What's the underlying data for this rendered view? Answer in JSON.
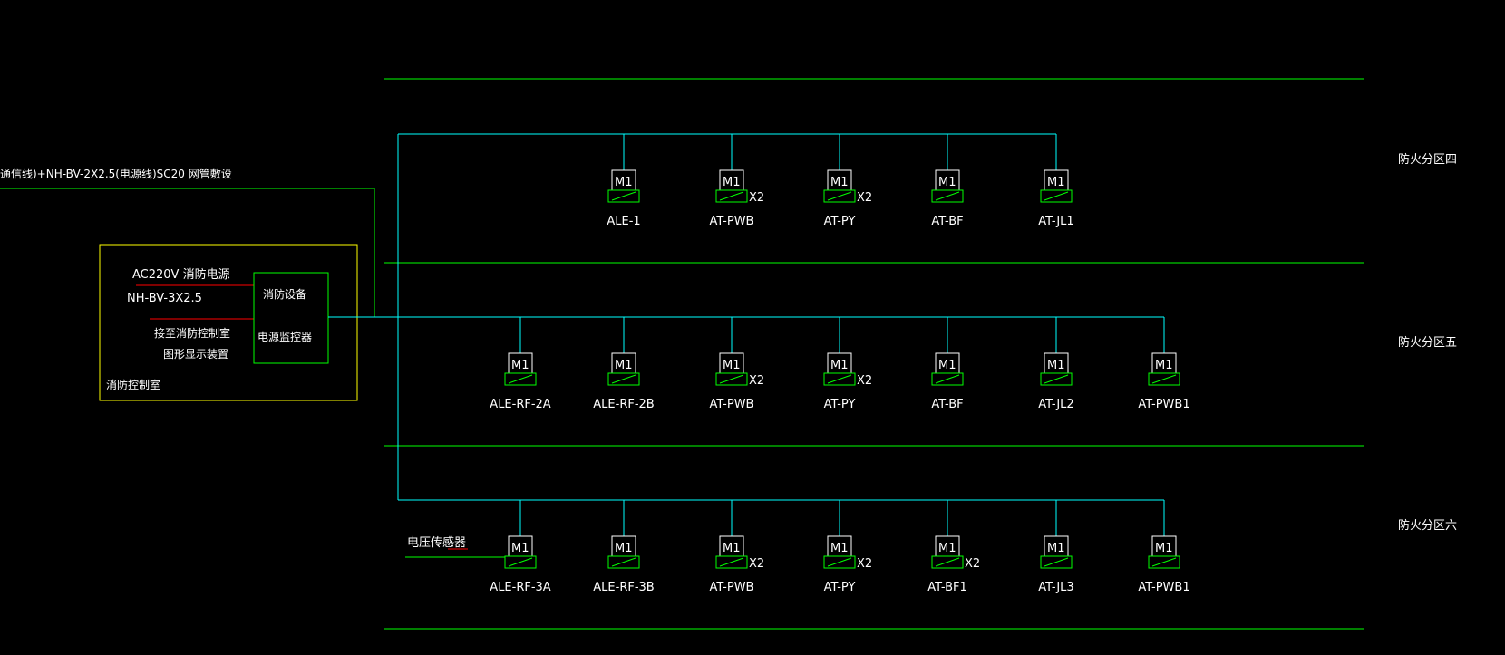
{
  "colors": {
    "background": "#000000",
    "bus_line": "#00ffff",
    "zone_divider": "#00ff00",
    "module_box": "#ffffff",
    "module_base": "#00ff00",
    "control_room_border": "#ffff00",
    "monitor_box": "#00ff00",
    "red_marker": "#ff0000",
    "text": "#ffffff"
  },
  "header": {
    "cable_spec": "通信线)+NH-BV-2X2.5(电源线)SC20 网管敷设"
  },
  "control_room": {
    "label": "消防控制室",
    "power_label": "AC220V 消防电源",
    "power_cable": "NH-BV-3X2.5",
    "link_label_1": "接至消防控制室",
    "link_label_2": "图形显示装置",
    "monitor_line1": "消防设备",
    "monitor_line2": "电源监控器"
  },
  "module_label": "M1",
  "zones": [
    {
      "name": "防火分区四",
      "modules": [
        {
          "label": "ALE-1",
          "mult": ""
        },
        {
          "label": "AT-PWB",
          "mult": "X2"
        },
        {
          "label": "AT-PY",
          "mult": "X2"
        },
        {
          "label": "AT-BF",
          "mult": ""
        },
        {
          "label": "AT-JL1",
          "mult": ""
        }
      ]
    },
    {
      "name": "防火分区五",
      "modules": [
        {
          "label": "ALE-RF-2A",
          "mult": ""
        },
        {
          "label": "ALE-RF-2B",
          "mult": ""
        },
        {
          "label": "AT-PWB",
          "mult": "X2"
        },
        {
          "label": "AT-PY",
          "mult": "X2"
        },
        {
          "label": "AT-BF",
          "mult": ""
        },
        {
          "label": "AT-JL2",
          "mult": ""
        },
        {
          "label": "AT-PWB1",
          "mult": ""
        }
      ]
    },
    {
      "name": "防火分区六",
      "sensor_label": "电压传感器",
      "modules": [
        {
          "label": "ALE-RF-3A",
          "mult": ""
        },
        {
          "label": "ALE-RF-3B",
          "mult": ""
        },
        {
          "label": "AT-PWB",
          "mult": "X2"
        },
        {
          "label": "AT-PY",
          "mult": "X2"
        },
        {
          "label": "AT-BF1",
          "mult": "X2"
        },
        {
          "label": "AT-JL3",
          "mult": ""
        },
        {
          "label": "AT-PWB1",
          "mult": ""
        }
      ]
    }
  ]
}
